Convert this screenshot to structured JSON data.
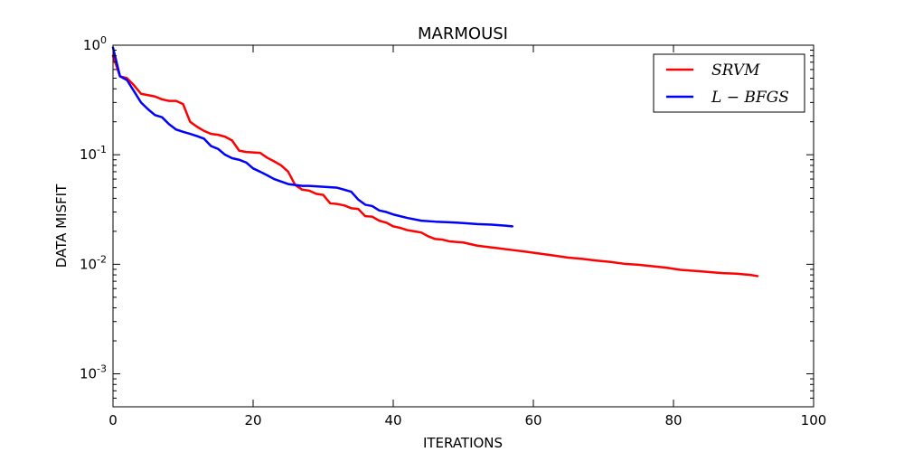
{
  "chart_data": {
    "type": "line",
    "title": "MARMOUSI",
    "xlabel": "ITERATIONS",
    "ylabel": "DATA MISFIT",
    "xlim": [
      0,
      100
    ],
    "ylim": [
      0.0005,
      1
    ],
    "yscale": "log",
    "grid": false,
    "legend_position": "top-right",
    "x_ticks": [
      {
        "value": 0,
        "label": "0"
      },
      {
        "value": 20,
        "label": "20"
      },
      {
        "value": 40,
        "label": "40"
      },
      {
        "value": 60,
        "label": "60"
      },
      {
        "value": 80,
        "label": "80"
      },
      {
        "value": 100,
        "label": "100"
      }
    ],
    "y_ticks": [
      {
        "value": 1,
        "base": "10",
        "exp": "0"
      },
      {
        "value": 0.1,
        "base": "10",
        "exp": "-1"
      },
      {
        "value": 0.01,
        "base": "10",
        "exp": "-2"
      },
      {
        "value": 0.001,
        "base": "10",
        "exp": "-3"
      }
    ],
    "series": [
      {
        "name": "SRVM",
        "color": "#ff0000",
        "points": [
          [
            0,
            0.8
          ],
          [
            1,
            0.52
          ],
          [
            2,
            0.5
          ],
          [
            3,
            0.43
          ],
          [
            4,
            0.36
          ],
          [
            5,
            0.35
          ],
          [
            6,
            0.34
          ],
          [
            7,
            0.32
          ],
          [
            8,
            0.31
          ],
          [
            9,
            0.31
          ],
          [
            10,
            0.29
          ],
          [
            11,
            0.2
          ],
          [
            12,
            0.18
          ],
          [
            13,
            0.165
          ],
          [
            14,
            0.155
          ],
          [
            15,
            0.152
          ],
          [
            16,
            0.146
          ],
          [
            17,
            0.135
          ],
          [
            18,
            0.109
          ],
          [
            19,
            0.106
          ],
          [
            20,
            0.105
          ],
          [
            21,
            0.104
          ],
          [
            22,
            0.094
          ],
          [
            23,
            0.087
          ],
          [
            24,
            0.08
          ],
          [
            25,
            0.07
          ],
          [
            26,
            0.053
          ],
          [
            27,
            0.048
          ],
          [
            28,
            0.047
          ],
          [
            29,
            0.044
          ],
          [
            30,
            0.043
          ],
          [
            31,
            0.036
          ],
          [
            32,
            0.0355
          ],
          [
            33,
            0.0345
          ],
          [
            34,
            0.0325
          ],
          [
            35,
            0.032
          ],
          [
            36,
            0.0275
          ],
          [
            37,
            0.0272
          ],
          [
            38,
            0.025
          ],
          [
            39,
            0.024
          ],
          [
            40,
            0.0222
          ],
          [
            41,
            0.0215
          ],
          [
            42,
            0.0205
          ],
          [
            43,
            0.02
          ],
          [
            44,
            0.0195
          ],
          [
            45,
            0.018
          ],
          [
            46,
            0.017
          ],
          [
            47,
            0.0168
          ],
          [
            48,
            0.0162
          ],
          [
            50,
            0.0158
          ],
          [
            52,
            0.0148
          ],
          [
            53,
            0.0145
          ],
          [
            55,
            0.014
          ],
          [
            57,
            0.0135
          ],
          [
            59,
            0.013
          ],
          [
            61,
            0.0125
          ],
          [
            63,
            0.012
          ],
          [
            65,
            0.0115
          ],
          [
            67,
            0.0112
          ],
          [
            69,
            0.0108
          ],
          [
            71,
            0.0105
          ],
          [
            73,
            0.0101
          ],
          [
            75,
            0.0099
          ],
          [
            77,
            0.0096
          ],
          [
            79,
            0.0093
          ],
          [
            81,
            0.0089
          ],
          [
            83,
            0.0087
          ],
          [
            85,
            0.0085
          ],
          [
            87,
            0.0083
          ],
          [
            89,
            0.0082
          ],
          [
            91,
            0.008
          ],
          [
            92,
            0.0078
          ]
        ]
      },
      {
        "name": "L-BFGS",
        "color": "#0000ff",
        "points": [
          [
            0,
            0.95
          ],
          [
            1,
            0.52
          ],
          [
            2,
            0.48
          ],
          [
            3,
            0.38
          ],
          [
            4,
            0.3
          ],
          [
            5,
            0.26
          ],
          [
            6,
            0.23
          ],
          [
            7,
            0.22
          ],
          [
            8,
            0.19
          ],
          [
            9,
            0.17
          ],
          [
            10,
            0.162
          ],
          [
            11,
            0.155
          ],
          [
            12,
            0.148
          ],
          [
            13,
            0.14
          ],
          [
            14,
            0.12
          ],
          [
            15,
            0.113
          ],
          [
            16,
            0.1
          ],
          [
            17,
            0.093
          ],
          [
            18,
            0.09
          ],
          [
            19,
            0.085
          ],
          [
            20,
            0.075
          ],
          [
            21,
            0.07
          ],
          [
            22,
            0.065
          ],
          [
            23,
            0.06
          ],
          [
            24,
            0.057
          ],
          [
            25,
            0.054
          ],
          [
            26,
            0.053
          ],
          [
            27,
            0.052
          ],
          [
            28,
            0.052
          ],
          [
            30,
            0.051
          ],
          [
            32,
            0.05
          ],
          [
            34,
            0.046
          ],
          [
            35,
            0.039
          ],
          [
            36,
            0.035
          ],
          [
            37,
            0.034
          ],
          [
            38,
            0.031
          ],
          [
            39,
            0.03
          ],
          [
            40,
            0.0285
          ],
          [
            42,
            0.0265
          ],
          [
            44,
            0.025
          ],
          [
            46,
            0.0245
          ],
          [
            48,
            0.0242
          ],
          [
            50,
            0.0238
          ],
          [
            52,
            0.0233
          ],
          [
            54,
            0.023
          ],
          [
            56,
            0.0225
          ],
          [
            57,
            0.0222
          ]
        ]
      }
    ],
    "legend": [
      {
        "label": "SRVM",
        "color": "#ff0000"
      },
      {
        "label": "L − BFGS",
        "color": "#0000ff"
      }
    ]
  }
}
